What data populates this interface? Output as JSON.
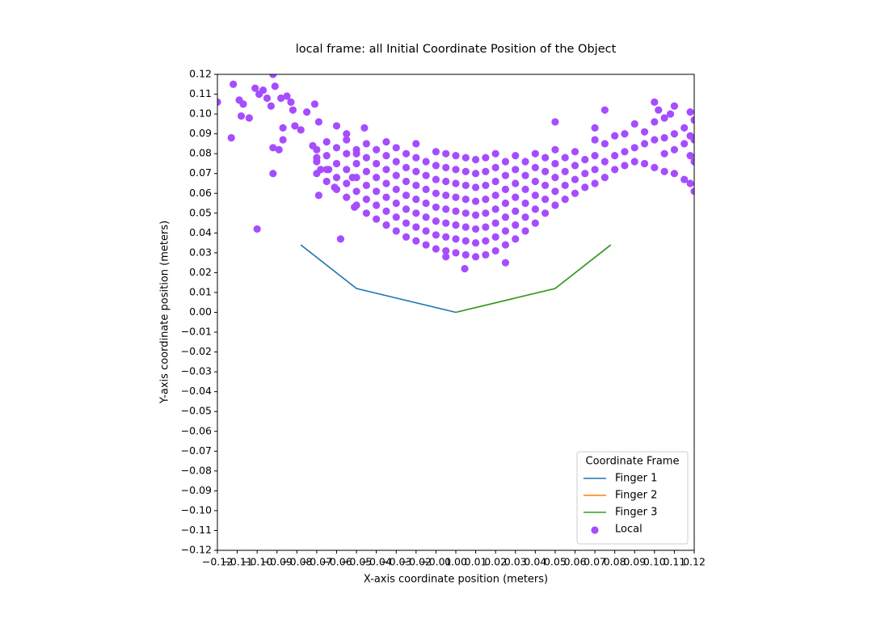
{
  "chart_data": {
    "type": "scatter",
    "title": "local frame: all Initial Coordinate Position of the Object",
    "xlabel": "X-axis coordinate position (meters)",
    "ylabel": "Y-axis coordinate position (meters)",
    "xlim": [
      -0.12,
      0.12
    ],
    "ylim": [
      -0.12,
      0.12
    ],
    "xticks": [
      {
        "value": -0.12,
        "label": "−0.12"
      },
      {
        "value": -0.11,
        "label": "−0.11"
      },
      {
        "value": -0.1,
        "label": "−0.10"
      },
      {
        "value": -0.09,
        "label": "−0.09"
      },
      {
        "value": -0.08,
        "label": "−0.08"
      },
      {
        "value": -0.07,
        "label": "−0.07"
      },
      {
        "value": -0.06,
        "label": "−0.06"
      },
      {
        "value": -0.05,
        "label": "−0.05"
      },
      {
        "value": -0.04,
        "label": "−0.04"
      },
      {
        "value": -0.03,
        "label": "−0.03"
      },
      {
        "value": -0.02,
        "label": "−0.02"
      },
      {
        "value": -0.01,
        "label": "−0.01"
      },
      {
        "value": 0,
        "label": "0.00"
      },
      0.01,
      0.02,
      0.03,
      0.04,
      0.05,
      0.06,
      0.07,
      0.08,
      0.09,
      {
        "value": 0.1,
        "label": "0.10"
      },
      0.11,
      0.12
    ],
    "yticks": [
      {
        "value": -0.12,
        "label": "−0.12"
      },
      {
        "value": -0.11,
        "label": "−0.11"
      },
      {
        "value": -0.1,
        "label": "−0.10"
      },
      {
        "value": -0.09,
        "label": "−0.09"
      },
      {
        "value": -0.08,
        "label": "−0.08"
      },
      {
        "value": -0.07,
        "label": "−0.07"
      },
      {
        "value": -0.06,
        "label": "−0.06"
      },
      {
        "value": -0.05,
        "label": "−0.05"
      },
      {
        "value": -0.04,
        "label": "−0.04"
      },
      {
        "value": -0.03,
        "label": "−0.03"
      },
      {
        "value": -0.02,
        "label": "−0.02"
      },
      {
        "value": -0.01,
        "label": "−0.01"
      },
      {
        "value": 0,
        "label": "0.00"
      },
      0.01,
      0.02,
      0.03,
      0.04,
      0.05,
      0.06,
      0.07,
      0.08,
      0.09,
      {
        "value": 0.1,
        "label": "0.10"
      },
      0.11,
      0.12
    ],
    "legend_title": "Coordinate Frame",
    "legend": "lower right",
    "series": [
      {
        "name": "Finger 1",
        "type": "line",
        "color": "#1f77b4",
        "x": [
          -0.078,
          -0.05,
          0
        ],
        "y": [
          0.034,
          0.012,
          0
        ]
      },
      {
        "name": "Finger 2",
        "type": "line",
        "color": "#ff7f0e",
        "x": [
          0,
          0.05,
          0.078
        ],
        "y": [
          0,
          0.012,
          0.034
        ]
      },
      {
        "name": "Finger 3",
        "type": "line",
        "color": "#2ca02c",
        "x": [
          0,
          0.05,
          0.078
        ],
        "y": [
          0,
          0.012,
          0.034
        ]
      },
      {
        "name": "Local",
        "type": "scatter",
        "color": "#a64dff",
        "x": [
          -0.12,
          -0.113,
          -0.112,
          -0.109,
          -0.107,
          -0.108,
          -0.104,
          -0.101,
          -0.099,
          -0.097,
          -0.095,
          -0.092,
          -0.091,
          -0.093,
          -0.092,
          -0.089,
          -0.088,
          -0.087,
          -0.087,
          -0.085,
          -0.083,
          -0.082,
          -0.092,
          -0.1,
          -0.081,
          -0.078,
          -0.075,
          -0.071,
          -0.069,
          -0.072,
          -0.07,
          -0.068,
          -0.069,
          -0.064,
          -0.06,
          -0.058,
          -0.061,
          -0.055,
          -0.051,
          -0.05,
          -0.052,
          -0.046,
          -0.07,
          -0.07,
          -0.07,
          -0.065,
          -0.065,
          -0.065,
          -0.065,
          -0.06,
          -0.06,
          -0.06,
          -0.06,
          -0.055,
          -0.055,
          -0.055,
          -0.055,
          -0.055,
          -0.05,
          -0.05,
          -0.05,
          -0.05,
          -0.05,
          -0.045,
          -0.045,
          -0.045,
          -0.045,
          -0.045,
          -0.045,
          -0.04,
          -0.04,
          -0.04,
          -0.04,
          -0.04,
          -0.04,
          -0.035,
          -0.035,
          -0.035,
          -0.035,
          -0.035,
          -0.035,
          -0.035,
          -0.03,
          -0.03,
          -0.03,
          -0.03,
          -0.03,
          -0.03,
          -0.03,
          -0.025,
          -0.025,
          -0.025,
          -0.025,
          -0.025,
          -0.025,
          -0.025,
          -0.02,
          -0.02,
          -0.02,
          -0.02,
          -0.02,
          -0.02,
          -0.02,
          -0.02,
          -0.015,
          -0.015,
          -0.015,
          -0.015,
          -0.015,
          -0.015,
          -0.015,
          -0.01,
          -0.01,
          -0.01,
          -0.01,
          -0.01,
          -0.01,
          -0.01,
          -0.01,
          -0.005,
          -0.005,
          -0.005,
          -0.005,
          -0.005,
          -0.005,
          -0.005,
          -0.005,
          0,
          0,
          0,
          0,
          0,
          0,
          0,
          0,
          0.005,
          0.005,
          0.005,
          0.005,
          0.005,
          0.005,
          0.005,
          0.005,
          0.01,
          0.01,
          0.01,
          0.01,
          0.01,
          0.01,
          0.01,
          0.01,
          0.015,
          0.015,
          0.015,
          0.015,
          0.015,
          0.015,
          0.015,
          0.015,
          0.02,
          0.02,
          0.02,
          0.02,
          0.02,
          0.02,
          0.02,
          0.02,
          0.025,
          0.025,
          0.025,
          0.025,
          0.025,
          0.025,
          0.025,
          0.03,
          0.03,
          0.03,
          0.03,
          0.03,
          0.03,
          0.03,
          0.035,
          0.035,
          0.035,
          0.035,
          0.035,
          0.035,
          0.04,
          0.04,
          0.04,
          0.04,
          0.04,
          0.04,
          0.045,
          0.045,
          0.045,
          0.045,
          0.045,
          0.05,
          0.05,
          0.05,
          0.05,
          0.05,
          0.055,
          0.055,
          0.055,
          0.055,
          0.06,
          0.06,
          0.06,
          0.06,
          0.065,
          0.065,
          0.065,
          0.07,
          0.07,
          0.07,
          0.07,
          0.0045,
          -0.005,
          0.025,
          0.05,
          0.075,
          0.07,
          0.075,
          0.075,
          0.075,
          0.08,
          0.08,
          0.08,
          0.085,
          0.085,
          0.085,
          0.09,
          0.09,
          0.09,
          0.095,
          0.095,
          0.095,
          0.1,
          0.1,
          0.1,
          0.1,
          0.105,
          0.105,
          0.105,
          0.105,
          0.11,
          0.11,
          0.11,
          0.11,
          0.115,
          0.115,
          0.115,
          0.118,
          0.118,
          0.118,
          0.118,
          0.12,
          0.12,
          0.12,
          0.12,
          0.102,
          0.108
        ],
        "y": [
          0.106,
          0.088,
          0.115,
          0.107,
          0.105,
          0.099,
          0.098,
          0.113,
          0.11,
          0.112,
          0.108,
          0.12,
          0.114,
          0.104,
          0.083,
          0.082,
          0.108,
          0.093,
          0.087,
          0.109,
          0.106,
          0.102,
          0.07,
          0.042,
          0.094,
          0.092,
          0.101,
          0.105,
          0.096,
          0.084,
          0.078,
          0.072,
          0.059,
          0.072,
          0.094,
          0.037,
          0.063,
          0.09,
          0.053,
          0.08,
          0.068,
          0.093,
          0.07,
          0.076,
          0.082,
          0.066,
          0.072,
          0.079,
          0.086,
          0.062,
          0.068,
          0.075,
          0.083,
          0.058,
          0.065,
          0.072,
          0.08,
          0.087,
          0.054,
          0.061,
          0.068,
          0.075,
          0.082,
          0.05,
          0.057,
          0.064,
          0.071,
          0.078,
          0.085,
          0.047,
          0.054,
          0.061,
          0.068,
          0.075,
          0.082,
          0.044,
          0.051,
          0.058,
          0.065,
          0.072,
          0.079,
          0.086,
          0.041,
          0.048,
          0.055,
          0.062,
          0.069,
          0.076,
          0.083,
          0.038,
          0.045,
          0.052,
          0.059,
          0.066,
          0.073,
          0.08,
          0.036,
          0.043,
          0.05,
          0.057,
          0.064,
          0.071,
          0.078,
          0.085,
          0.034,
          0.041,
          0.048,
          0.055,
          0.062,
          0.069,
          0.076,
          0.032,
          0.039,
          0.046,
          0.053,
          0.06,
          0.067,
          0.074,
          0.081,
          0.031,
          0.038,
          0.045,
          0.052,
          0.059,
          0.066,
          0.073,
          0.08,
          0.03,
          0.037,
          0.044,
          0.051,
          0.058,
          0.065,
          0.072,
          0.079,
          0.029,
          0.036,
          0.043,
          0.05,
          0.057,
          0.064,
          0.071,
          0.078,
          0.028,
          0.035,
          0.042,
          0.049,
          0.056,
          0.063,
          0.07,
          0.077,
          0.029,
          0.036,
          0.043,
          0.05,
          0.057,
          0.064,
          0.071,
          0.078,
          0.031,
          0.038,
          0.045,
          0.052,
          0.059,
          0.066,
          0.073,
          0.08,
          0.034,
          0.041,
          0.048,
          0.055,
          0.062,
          0.069,
          0.076,
          0.037,
          0.044,
          0.051,
          0.058,
          0.065,
          0.072,
          0.079,
          0.041,
          0.048,
          0.055,
          0.062,
          0.069,
          0.076,
          0.045,
          0.052,
          0.059,
          0.066,
          0.073,
          0.08,
          0.05,
          0.057,
          0.064,
          0.071,
          0.078,
          0.054,
          0.061,
          0.068,
          0.075,
          0.082,
          0.057,
          0.064,
          0.071,
          0.078,
          0.06,
          0.067,
          0.074,
          0.081,
          0.063,
          0.07,
          0.077,
          0.065,
          0.072,
          0.079,
          0.087,
          0.022,
          0.028,
          0.025,
          0.096,
          0.102,
          0.093,
          0.068,
          0.076,
          0.085,
          0.072,
          0.079,
          0.089,
          0.074,
          0.081,
          0.09,
          0.076,
          0.083,
          0.095,
          0.075,
          0.085,
          0.091,
          0.073,
          0.087,
          0.096,
          0.106,
          0.071,
          0.08,
          0.088,
          0.098,
          0.07,
          0.082,
          0.09,
          0.104,
          0.067,
          0.085,
          0.093,
          0.065,
          0.079,
          0.089,
          0.101,
          0.061,
          0.076,
          0.087,
          0.097,
          0.102,
          0.1
        ]
      }
    ]
  }
}
